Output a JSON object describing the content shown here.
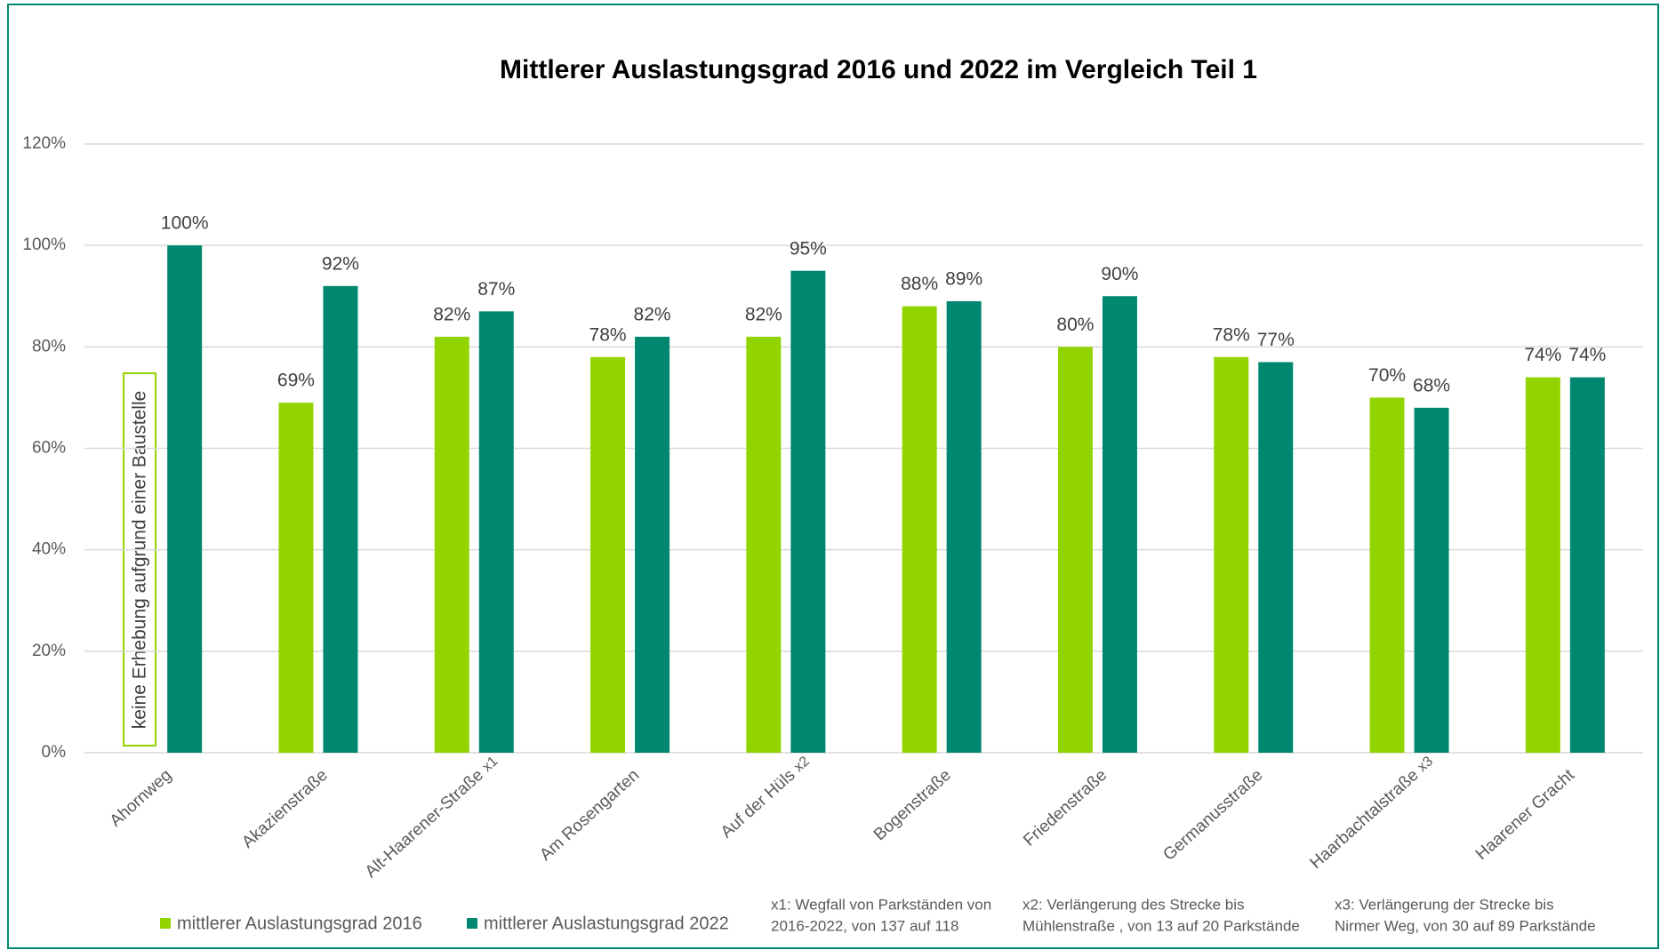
{
  "chart_data": {
    "type": "bar",
    "title": "Mittlerer Auslastungsgrad 2016 und 2022 im Vergleich Teil 1",
    "categories": [
      "Ahornweg",
      "Akazienstraße",
      "Alt-Haarener-Straße",
      "Am Rosengarten",
      "Auf der Hüls",
      "Bogenstraße",
      "Friedenstraße",
      "Germanusstraße",
      "Haarbachtalstraße",
      "Haarener Gracht"
    ],
    "category_marks": [
      null,
      null,
      "x1",
      null,
      "x2",
      null,
      null,
      null,
      "x3",
      null
    ],
    "series": [
      {
        "name": "mittlerer Auslastungsgrad 2016",
        "color": "#92d400",
        "values": [
          null,
          69,
          82,
          78,
          82,
          88,
          80,
          78,
          70,
          74
        ],
        "value_labels": [
          null,
          "69%",
          "82%",
          "78%",
          "82%",
          "88%",
          "80%",
          "78%",
          "70%",
          "74%"
        ]
      },
      {
        "name": "mittlerer Auslastungsgrad 2022",
        "color": "#00876f",
        "values": [
          100,
          92,
          87,
          82,
          95,
          89,
          90,
          77,
          68,
          74
        ],
        "value_labels": [
          "100%",
          "92%",
          "87%",
          "82%",
          "95%",
          "89%",
          "90%",
          "77%",
          "68%",
          "74%"
        ]
      }
    ],
    "ylim": [
      0,
      120
    ],
    "yticks": [
      {
        "value": 0,
        "label": "0%"
      },
      {
        "value": 20,
        "label": "20%"
      },
      {
        "value": 40,
        "label": "40%"
      },
      {
        "value": 60,
        "label": "60%"
      },
      {
        "value": 80,
        "label": "80%"
      },
      {
        "value": 100,
        "label": "100%"
      },
      {
        "value": 120,
        "label": "120%"
      }
    ],
    "grid": true,
    "legend": "bottom",
    "annotation": "keine Erhebung aufgrund einer Baustelle",
    "footnotes": [
      [
        "x1: Wegfall von Parkständen von",
        "2016-2022,  von 137 auf 118"
      ],
      [
        "x2: Verlängerung des Strecke bis",
        "Mühlenstraße , von 13 auf 20 Parkstände"
      ],
      [
        "x3: Verlängerung der Strecke bis",
        "Nirmer Weg, von 30 auf 89 Parkstände"
      ]
    ]
  }
}
